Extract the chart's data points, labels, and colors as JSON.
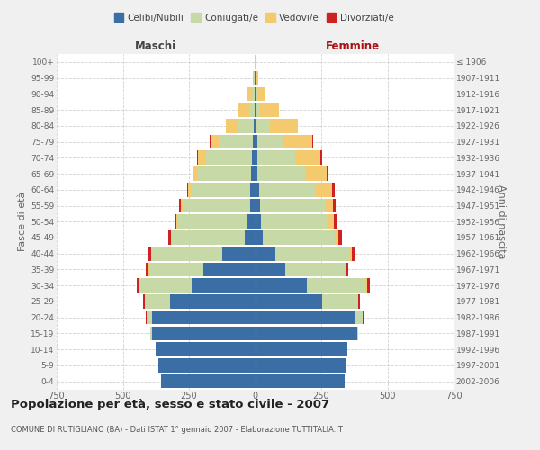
{
  "age_groups": [
    "0-4",
    "5-9",
    "10-14",
    "15-19",
    "20-24",
    "25-29",
    "30-34",
    "35-39",
    "40-44",
    "45-49",
    "50-54",
    "55-59",
    "60-64",
    "65-69",
    "70-74",
    "75-79",
    "80-84",
    "85-89",
    "90-94",
    "95-99",
    "100+"
  ],
  "birth_years": [
    "2002-2006",
    "1997-2001",
    "1992-1996",
    "1987-1991",
    "1982-1986",
    "1977-1981",
    "1972-1976",
    "1967-1971",
    "1962-1966",
    "1957-1961",
    "1952-1956",
    "1947-1951",
    "1942-1946",
    "1937-1941",
    "1932-1936",
    "1927-1931",
    "1922-1926",
    "1917-1921",
    "1912-1916",
    "1907-1911",
    "≤ 1906"
  ],
  "males_celibi": [
    355,
    365,
    375,
    390,
    390,
    320,
    240,
    195,
    125,
    38,
    28,
    20,
    18,
    15,
    12,
    8,
    5,
    3,
    3,
    2,
    0
  ],
  "males_coniugati": [
    0,
    0,
    0,
    5,
    15,
    95,
    195,
    205,
    265,
    275,
    265,
    255,
    225,
    200,
    175,
    130,
    65,
    20,
    8,
    3,
    1
  ],
  "males_vedovi": [
    0,
    0,
    0,
    0,
    5,
    3,
    3,
    3,
    3,
    5,
    5,
    6,
    10,
    18,
    28,
    28,
    42,
    40,
    18,
    5,
    0
  ],
  "males_divorziati": [
    0,
    0,
    0,
    0,
    3,
    5,
    8,
    10,
    10,
    10,
    8,
    8,
    5,
    5,
    5,
    5,
    0,
    0,
    0,
    0,
    0
  ],
  "females_nubili": [
    340,
    345,
    350,
    385,
    375,
    255,
    195,
    115,
    75,
    28,
    22,
    18,
    15,
    10,
    10,
    8,
    5,
    3,
    3,
    2,
    0
  ],
  "females_coniugate": [
    0,
    0,
    0,
    5,
    30,
    130,
    222,
    222,
    282,
    272,
    255,
    245,
    215,
    178,
    140,
    100,
    50,
    15,
    8,
    2,
    0
  ],
  "females_vedove": [
    0,
    0,
    0,
    0,
    3,
    5,
    5,
    5,
    10,
    16,
    22,
    32,
    62,
    82,
    98,
    108,
    108,
    72,
    25,
    8,
    1
  ],
  "females_divorziate": [
    0,
    0,
    0,
    0,
    3,
    5,
    10,
    10,
    12,
    12,
    10,
    10,
    8,
    5,
    5,
    3,
    0,
    0,
    0,
    0,
    0
  ],
  "color_celibi": "#3A6EA5",
  "color_coniugati": "#C8D9A8",
  "color_vedovi": "#F5C96D",
  "color_divorziati": "#CC2222",
  "legend_labels": [
    "Celibi/Nubili",
    "Coniugati/e",
    "Vedovi/e",
    "Divorziati/e"
  ],
  "title": "Popolazione per età, sesso e stato civile - 2007",
  "subtitle": "COMUNE DI RUTIGLIANO (BA) - Dati ISTAT 1° gennaio 2007 - Elaborazione TUTTITALIA.IT",
  "label_maschi": "Maschi",
  "label_femmine": "Femmine",
  "label_fasce": "Fasce di età",
  "label_anni": "Anni di nascita",
  "xlim": 750,
  "bg_color": "#f0f0f0",
  "plot_bg": "#ffffff"
}
